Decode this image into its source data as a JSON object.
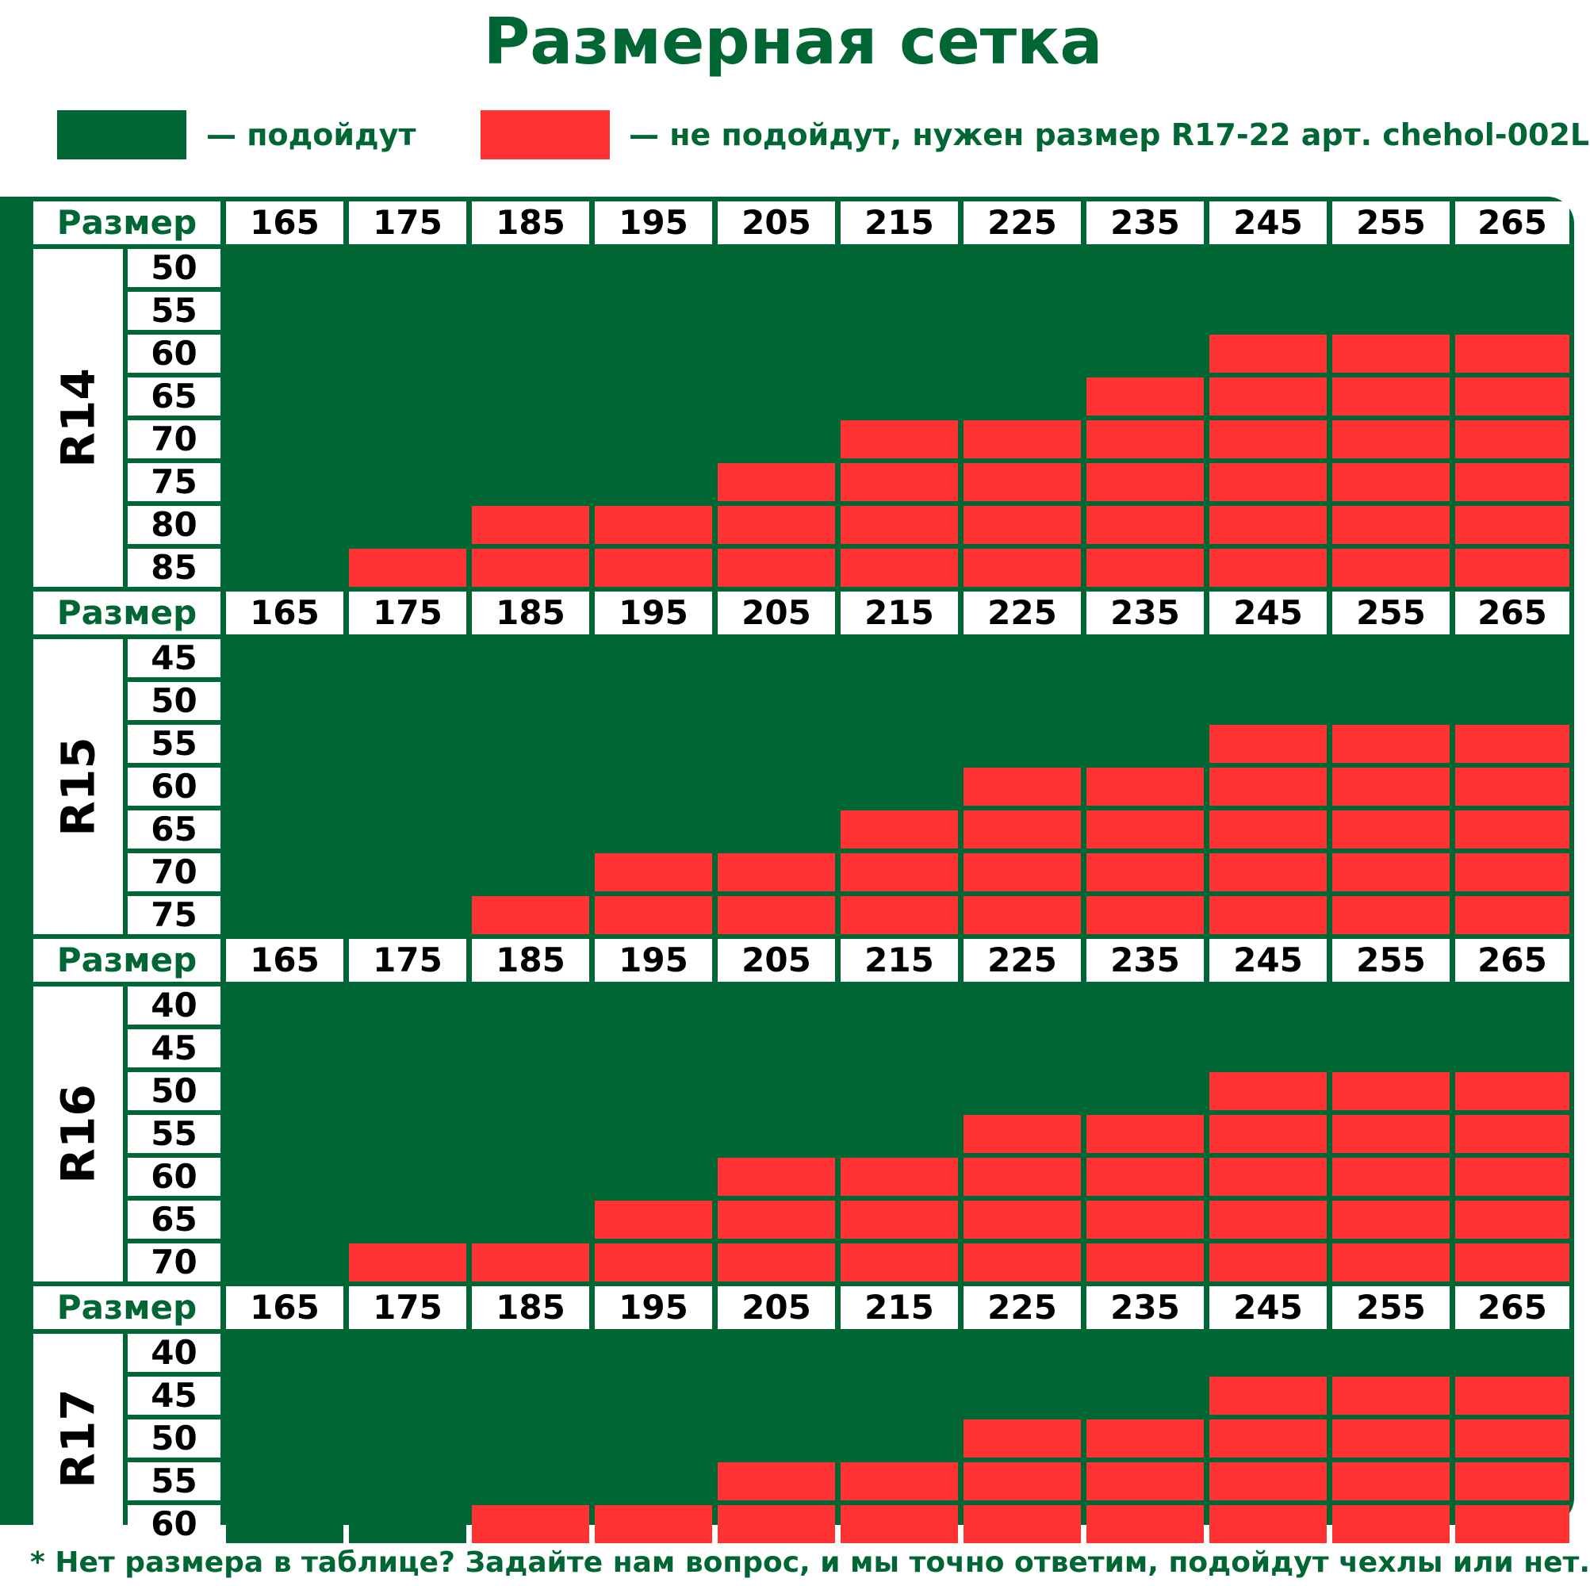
{
  "title": "Размерная сетка",
  "legend": {
    "fit_label": "— подойдут",
    "nofit_label": "— не подойдут, нужен размер R17-22 арт. chehol-002L"
  },
  "colors": {
    "fit": "#006633",
    "nofit": "#FF3333",
    "background": "#ffffff"
  },
  "size_label": "Размер",
  "widths": [
    "165",
    "175",
    "185",
    "195",
    "205",
    "215",
    "225",
    "235",
    "245",
    "255",
    "265"
  ],
  "sections": [
    {
      "rim": "R14",
      "rows": [
        {
          "profile": "50",
          "fit_count": 11
        },
        {
          "profile": "55",
          "fit_count": 11
        },
        {
          "profile": "60",
          "fit_count": 8
        },
        {
          "profile": "65",
          "fit_count": 7
        },
        {
          "profile": "70",
          "fit_count": 5
        },
        {
          "profile": "75",
          "fit_count": 4
        },
        {
          "profile": "80",
          "fit_count": 2
        },
        {
          "profile": "85",
          "fit_count": 1
        }
      ]
    },
    {
      "rim": "R15",
      "rows": [
        {
          "profile": "45",
          "fit_count": 11
        },
        {
          "profile": "50",
          "fit_count": 11
        },
        {
          "profile": "55",
          "fit_count": 8
        },
        {
          "profile": "60",
          "fit_count": 6
        },
        {
          "profile": "65",
          "fit_count": 5
        },
        {
          "profile": "70",
          "fit_count": 3
        },
        {
          "profile": "75",
          "fit_count": 2
        }
      ]
    },
    {
      "rim": "R16",
      "rows": [
        {
          "profile": "40",
          "fit_count": 11
        },
        {
          "profile": "45",
          "fit_count": 11
        },
        {
          "profile": "50",
          "fit_count": 8
        },
        {
          "profile": "55",
          "fit_count": 6
        },
        {
          "profile": "60",
          "fit_count": 4
        },
        {
          "profile": "65",
          "fit_count": 3
        },
        {
          "profile": "70",
          "fit_count": 1
        }
      ]
    },
    {
      "rim": "R17",
      "rows": [
        {
          "profile": "40",
          "fit_count": 11
        },
        {
          "profile": "45",
          "fit_count": 8
        },
        {
          "profile": "50",
          "fit_count": 6
        },
        {
          "profile": "55",
          "fit_count": 4
        },
        {
          "profile": "60",
          "fit_count": 2
        }
      ]
    }
  ],
  "footnote": "* Нет размера в таблице? Задайте нам вопрос, и мы точно ответим, подойдут чехлы или нет."
}
